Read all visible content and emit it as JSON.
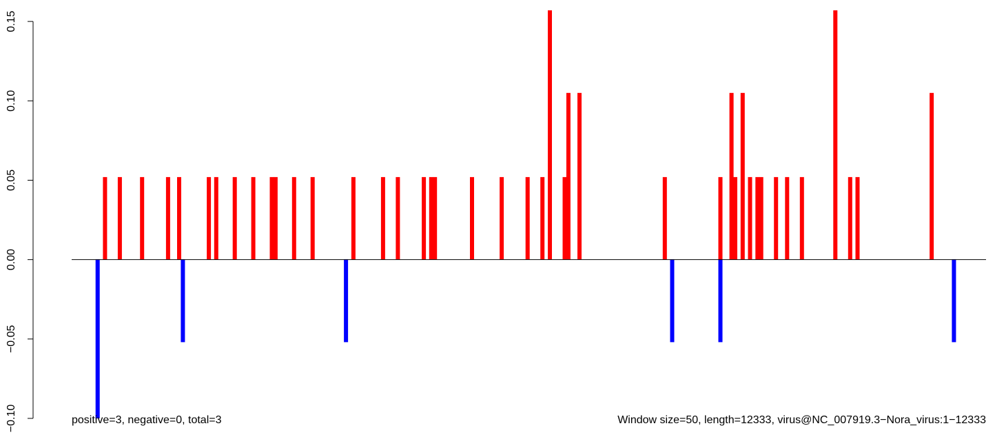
{
  "chart_data": {
    "type": "bar",
    "title": "",
    "xlabel": "",
    "ylabel": "",
    "ylim": [
      -0.1,
      0.157
    ],
    "xlim": [
      0,
      12333
    ],
    "yticks": [
      -0.1,
      -0.05,
      0.0,
      0.05,
      0.1,
      0.15
    ],
    "ytick_labels": [
      "−0.10",
      "−0.05",
      "0.00",
      "0.05",
      "0.10",
      "0.15"
    ],
    "baseline": 0,
    "grid": false,
    "legend": "none",
    "colors": {
      "positive": "#ff0000",
      "negative": "#0000ff",
      "baseline": "#000000"
    },
    "series": [
      {
        "values": [
          [
            450,
            0.052
          ],
          [
            650,
            0.052
          ],
          [
            950,
            0.052
          ],
          [
            1300,
            0.052
          ],
          [
            1450,
            0.052
          ],
          [
            1850,
            0.052
          ],
          [
            1950,
            0.052
          ],
          [
            2200,
            0.052
          ],
          [
            2450,
            0.052
          ],
          [
            2700,
            0.052
          ],
          [
            2750,
            0.052
          ],
          [
            3000,
            0.052
          ],
          [
            3250,
            0.052
          ],
          [
            3800,
            0.052
          ],
          [
            4200,
            0.052
          ],
          [
            4400,
            0.052
          ],
          [
            4750,
            0.052
          ],
          [
            4850,
            0.052
          ],
          [
            4900,
            0.052
          ],
          [
            5400,
            0.052
          ],
          [
            5800,
            0.052
          ],
          [
            6150,
            0.052
          ],
          [
            6350,
            0.052
          ],
          [
            6450,
            0.157
          ],
          [
            6650,
            0.052
          ],
          [
            6700,
            0.105
          ],
          [
            6850,
            0.105
          ],
          [
            8000,
            0.052
          ],
          [
            8750,
            0.052
          ],
          [
            8900,
            0.105
          ],
          [
            8950,
            0.052
          ],
          [
            9050,
            0.105
          ],
          [
            9150,
            0.052
          ],
          [
            9250,
            0.052
          ],
          [
            9300,
            0.052
          ],
          [
            9500,
            0.052
          ],
          [
            9650,
            0.052
          ],
          [
            9850,
            0.052
          ],
          [
            10300,
            0.157
          ],
          [
            10500,
            0.052
          ],
          [
            10600,
            0.052
          ],
          [
            11600,
            0.105
          ]
        ]
      },
      {
        "values": [
          [
            350,
            -0.1
          ],
          [
            1500,
            -0.052
          ],
          [
            3700,
            -0.052
          ],
          [
            8100,
            -0.052
          ],
          [
            8750,
            -0.052
          ],
          [
            11900,
            -0.052
          ]
        ]
      }
    ],
    "annotations": [
      {
        "text": "positive=3, negative=0, total=3",
        "position": "bottom-left"
      },
      {
        "text": "Window size=50, length=12333, virus@NC_007919.3−Nora_virus:1−12333",
        "position": "bottom-right"
      }
    ]
  }
}
